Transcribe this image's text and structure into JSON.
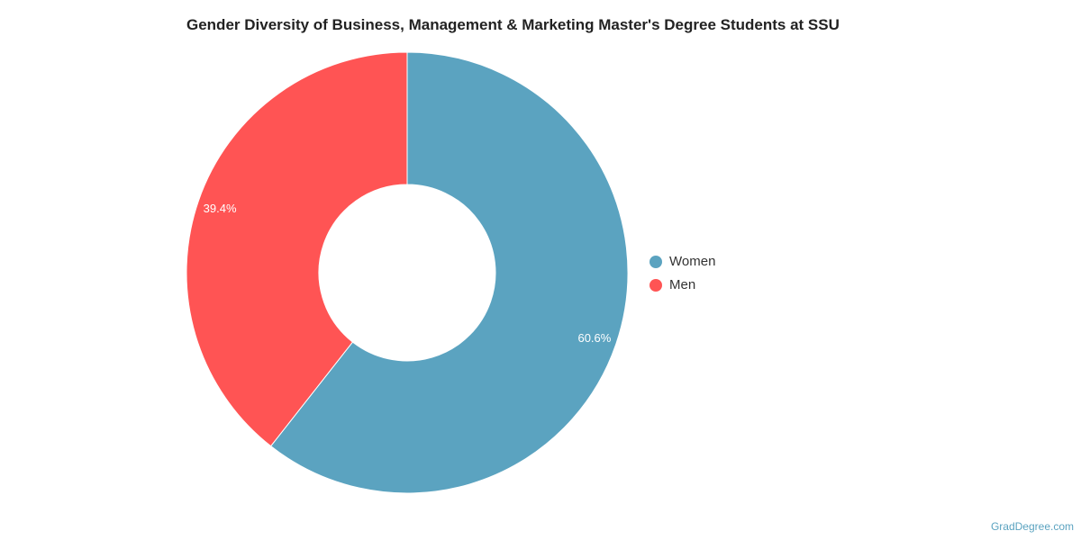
{
  "chart_data": {
    "type": "pie",
    "title": "Gender Diversity of Business, Management & Marketing Master's Degree Students at SSU",
    "categories": [
      "Women",
      "Men"
    ],
    "values": [
      60.6,
      39.4
    ],
    "data_labels": [
      "60.6%",
      "39.4%"
    ],
    "colors": [
      "#5ba3c0",
      "#ff5454"
    ],
    "donut": true,
    "legend": "right"
  },
  "credit": "GradDegree.com"
}
